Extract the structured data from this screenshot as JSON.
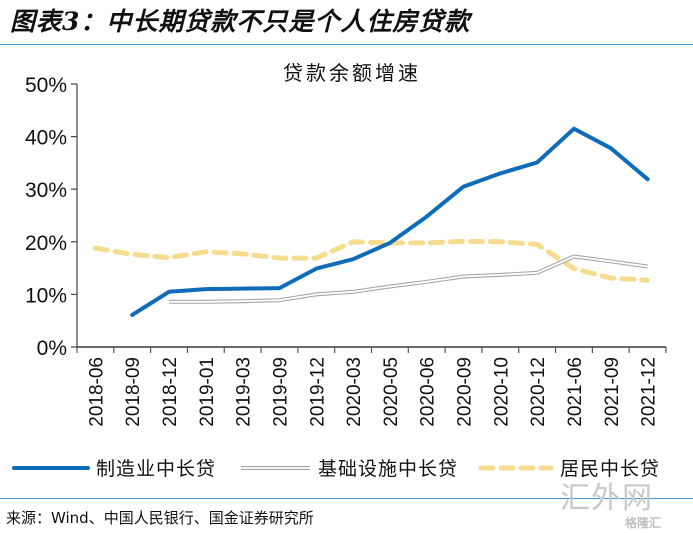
{
  "figure": {
    "title": "图表3：中长期贷款不只是个人住房贷款",
    "source": "来源：Wind、中国人民银行、国金证券研究所",
    "watermark": "汇外网",
    "watermark_sub": "格隆汇"
  },
  "colors": {
    "manufacturing": "#0E6CB8",
    "infrastructure": "#A6A6A6",
    "residents": "#F5DC8E",
    "rule": "#3A9AD9"
  },
  "chart_data": {
    "type": "line",
    "title": "贷款余额增速",
    "xlabel": "",
    "ylabel": "",
    "ylim": [
      0,
      50
    ],
    "yticks": [
      "0%",
      "10%",
      "20%",
      "30%",
      "40%",
      "50%"
    ],
    "ytick_values": [
      0,
      10,
      20,
      30,
      40,
      50
    ],
    "grid": false,
    "legend_position": "bottom",
    "categories": [
      "2018-06",
      "2018-09",
      "2018-12",
      "2019-01",
      "2019-03",
      "2019-09",
      "2019-12",
      "2020-03",
      "2020-05",
      "2020-06",
      "2020-09",
      "2020-10",
      "2020-12",
      "2021-06",
      "2021-09",
      "2021-12"
    ],
    "series": [
      {
        "name": "制造业中长贷",
        "style": "solid",
        "values": [
          null,
          6.1,
          10.5,
          11.0,
          11.1,
          11.2,
          14.9,
          16.7,
          19.8,
          24.8,
          30.5,
          33.0,
          35.1,
          41.5,
          37.8,
          31.9
        ]
      },
      {
        "name": "基础设施中长贷",
        "style": "double",
        "values": [
          null,
          null,
          8.6,
          8.6,
          8.7,
          8.9,
          10.0,
          10.5,
          11.5,
          12.4,
          13.4,
          13.7,
          14.1,
          17.2,
          16.3,
          15.3
        ]
      },
      {
        "name": "居民中长贷",
        "style": "dashed",
        "values": [
          18.8,
          17.6,
          17.0,
          18.1,
          17.7,
          16.9,
          16.9,
          20.0,
          19.8,
          19.8,
          20.1,
          20.0,
          19.5,
          14.9,
          13.1,
          12.7
        ]
      }
    ]
  }
}
